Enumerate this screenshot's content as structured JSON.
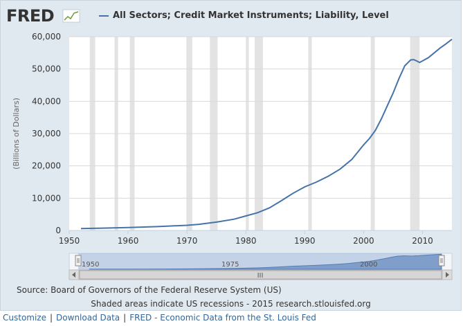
{
  "logo": {
    "text": "FRED"
  },
  "legend": {
    "label": "All Sectors; Credit Market Instruments; Liability, Level"
  },
  "source": "Source: Board of Governors of the Federal Reserve System (US)",
  "shaded_note": "Shaded areas indicate US recessions - 2015 research.stlouisfed.org",
  "footer": {
    "links": [
      "Customize",
      "Download Data",
      "FRED - Economic Data from the St. Louis Fed"
    ],
    "separator": "|"
  },
  "navigator": {
    "labels": [
      "1950",
      "1975",
      "2000"
    ],
    "scroll_grip": "III"
  },
  "colors": {
    "line": "#4572a7",
    "recession": "#e3e3e3",
    "background": "#e1e9f0",
    "plot": "#ffffff"
  },
  "chart_data": {
    "type": "line",
    "title": "All Sectors; Credit Market Instruments; Liability, Level",
    "ylabel": "(Billions of Dollars)",
    "xlabel": "",
    "xlim": [
      1950,
      2015
    ],
    "ylim": [
      0,
      60000
    ],
    "x_ticks": [
      "1950",
      "1960",
      "1970",
      "1980",
      "1990",
      "2000",
      "2010"
    ],
    "y_ticks": [
      "0",
      "10,000",
      "20,000",
      "30,000",
      "40,000",
      "50,000",
      "60,000"
    ],
    "recessions": [
      [
        1953.5,
        1954.4
      ],
      [
        1957.7,
        1958.3
      ],
      [
        1960.3,
        1961.1
      ],
      [
        1969.9,
        1970.9
      ],
      [
        1973.9,
        1975.2
      ],
      [
        1980.0,
        1980.5
      ],
      [
        1981.5,
        1982.9
      ],
      [
        1990.6,
        1991.2
      ],
      [
        2001.2,
        2001.9
      ],
      [
        2007.9,
        2009.5
      ]
    ],
    "series": [
      {
        "name": "All Sectors; Credit Market Instruments; Liability, Level",
        "x": [
          1952,
          1955,
          1960,
          1965,
          1970,
          1972,
          1975,
          1978,
          1980,
          1982,
          1984,
          1986,
          1988,
          1990,
          1992,
          1994,
          1996,
          1998,
          2000,
          2001,
          2002,
          2003,
          2004,
          2005,
          2006,
          2007,
          2008,
          2008.5,
          2009,
          2009.5,
          2010,
          2011,
          2012,
          2013,
          2014,
          2015
        ],
        "values": [
          600,
          700,
          900,
          1200,
          1600,
          1900,
          2600,
          3500,
          4500,
          5500,
          7000,
          9200,
          11500,
          13500,
          15000,
          16800,
          19000,
          22000,
          26500,
          28500,
          31000,
          34500,
          38500,
          42500,
          47000,
          51000,
          52800,
          52900,
          52500,
          52000,
          52500,
          53500,
          55000,
          56500,
          57800,
          59200
        ]
      }
    ]
  }
}
